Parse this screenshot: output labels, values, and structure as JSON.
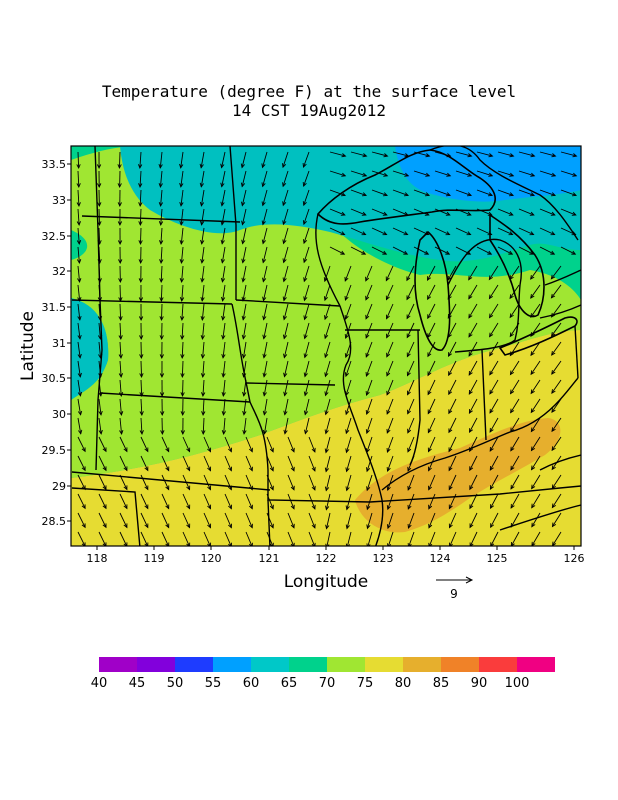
{
  "title_line1": "Temperature (degree F) at the surface level",
  "title_line2": "14 CST 19Aug2012",
  "x_axis_label": "Longitude",
  "y_axis_label": "Latitude",
  "x_ticks": [
    "118",
    "119",
    "120",
    "121",
    "122",
    "123",
    "124",
    "125",
    "126"
  ],
  "y_ticks": [
    "33.5",
    "33",
    "32.5",
    "32",
    "31.5",
    "31",
    "30.5",
    "30",
    "29.5",
    "29",
    "28.5"
  ],
  "vector_reference_label": "9",
  "colorbar": {
    "colors": [
      "#a000c8",
      "#8200dc",
      "#1e3cff",
      "#00a0ff",
      "#00c8c8",
      "#00d28c",
      "#a0e632",
      "#e6dc32",
      "#e6af2d",
      "#f08228",
      "#fa3c3c",
      "#f00082"
    ],
    "labels": [
      "40",
      "45",
      "50",
      "55",
      "60",
      "65",
      "70",
      "75",
      "80",
      "85",
      "90",
      "100"
    ]
  },
  "field_colors": {
    "t60_65": "#00c0c0",
    "t65_70": "#00d28c",
    "t70_75": "#a0e632",
    "t75_80": "#e6dc32",
    "t80_85": "#e6af2d",
    "t50_55": "#00a0ff"
  }
}
